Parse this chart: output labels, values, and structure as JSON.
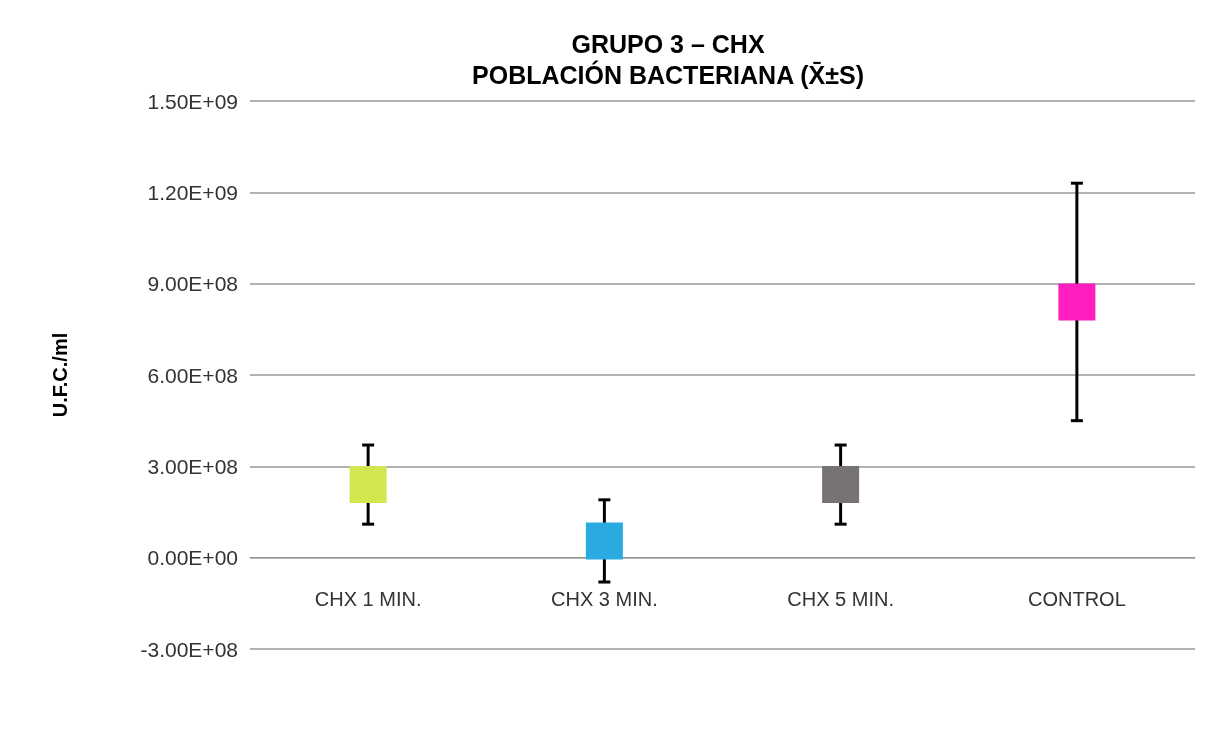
{
  "chart_data": {
    "type": "scatter",
    "title": "GRUPO 3 – CHX",
    "subtitle": "POBLACIÓN BACTERIANA (X̄±S)",
    "ylabel": "U.F.C./ml",
    "categories": [
      "CHX 1 MIN.",
      "CHX 3 MIN.",
      "CHX 5 MIN.",
      "CONTROL"
    ],
    "values": [
      240000000,
      55000000,
      240000000,
      840000000
    ],
    "errors": [
      130000000,
      135000000,
      130000000,
      390000000
    ],
    "colors": [
      "#d4e64f",
      "#29abe2",
      "#777372",
      "#ff1fc0"
    ],
    "ylim": [
      -300000000,
      1500000000
    ],
    "yticks": [
      {
        "value": -300000000,
        "label": "-3.00E+08"
      },
      {
        "value": 0,
        "label": "0.00E+00"
      },
      {
        "value": 300000000,
        "label": "3.00E+08"
      },
      {
        "value": 600000000,
        "label": "6.00E+08"
      },
      {
        "value": 900000000,
        "label": "9.00E+08"
      },
      {
        "value": 1200000000,
        "label": "1.20E+09"
      },
      {
        "value": 1500000000,
        "label": "1.50E+09"
      }
    ],
    "marker": "square",
    "grid": "y"
  }
}
